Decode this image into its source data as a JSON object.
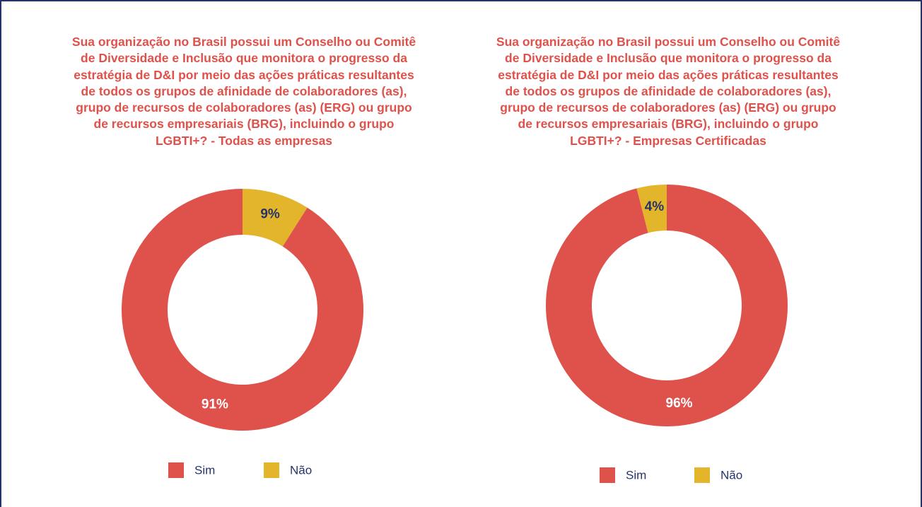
{
  "chart_data": [
    {
      "type": "pie",
      "donut": true,
      "title": "Sua organização no Brasil possui um Conselho ou Comitê de Diversidade e Inclusão que monitora o progresso da estratégia de D&I por meio das ações práticas resultantes de todos os grupos de afinidade de colaboradores (as), grupo de recursos de colaboradores (as) (ERG) ou grupo de recursos empresariais (BRG), incluindo o grupo LGBTI+? - Todas as empresas",
      "categories": [
        "Sim",
        "Não"
      ],
      "values": [
        91,
        9
      ],
      "value_labels": [
        "91%",
        "9%"
      ],
      "colors": [
        "#df524b",
        "#e3b52b"
      ],
      "legend": "bottom"
    },
    {
      "type": "pie",
      "donut": true,
      "title": "Sua organização no Brasil possui um Conselho ou Comitê de Diversidade e Inclusão que monitora o progresso da estratégia de D&I por meio das ações práticas resultantes de todos os grupos de afinidade de colaboradores (as), grupo de recursos de colaboradores (as) (ERG) ou grupo de recursos empresariais (BRG), incluindo o grupo LGBTI+? - Empresas Certificadas",
      "categories": [
        "Sim",
        "Não"
      ],
      "values": [
        96,
        4
      ],
      "value_labels": [
        "96%",
        "4%"
      ],
      "colors": [
        "#df524b",
        "#e3b52b"
      ],
      "legend": "bottom"
    }
  ]
}
